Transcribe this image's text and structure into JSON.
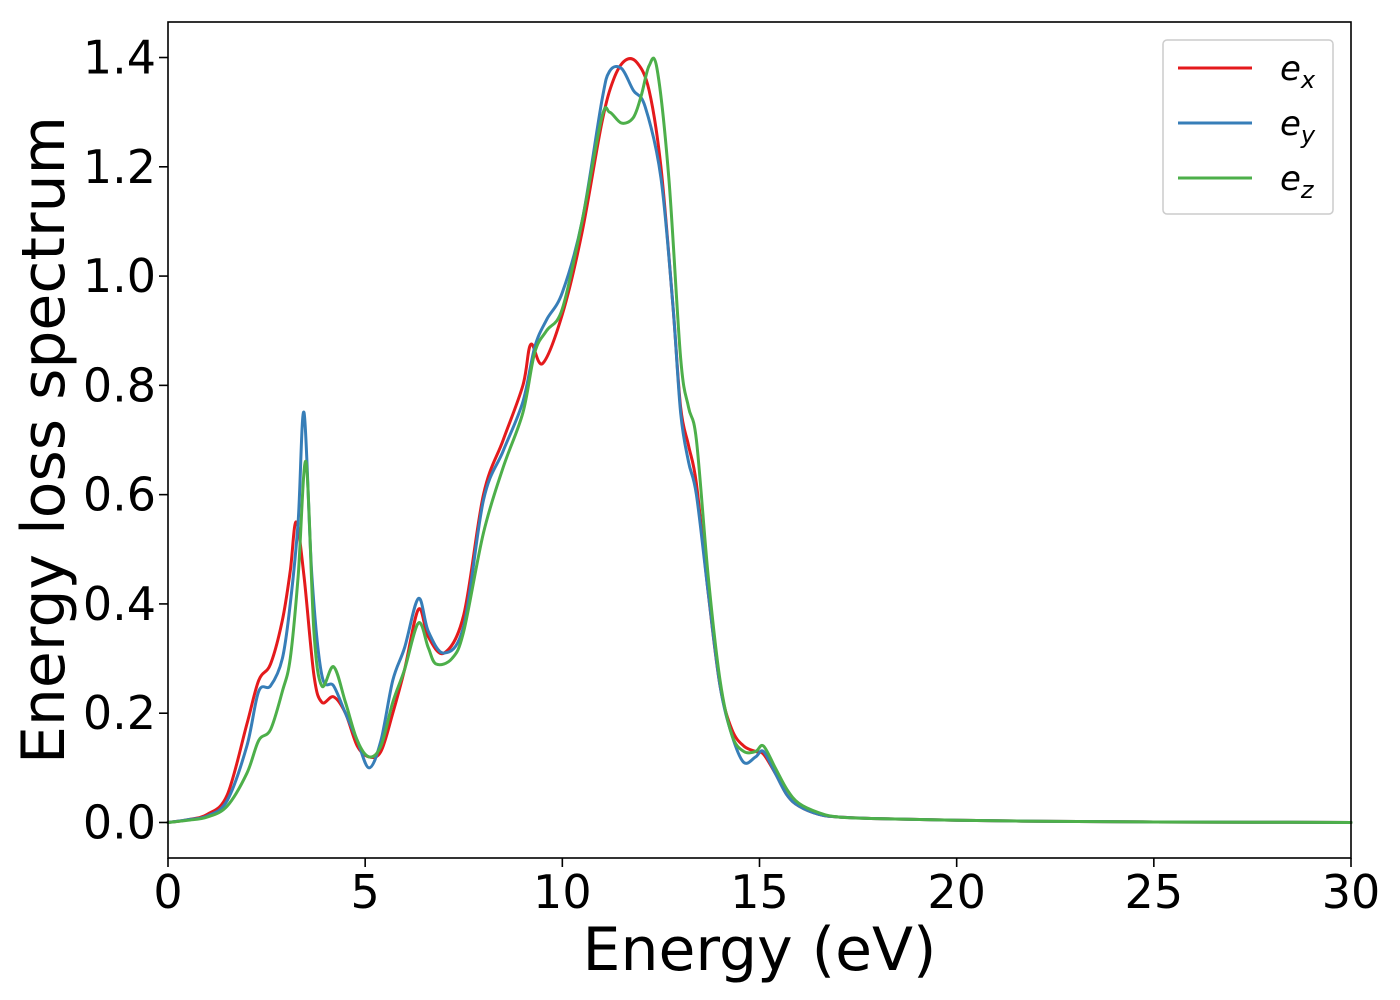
{
  "chart_data": {
    "type": "line",
    "title": "",
    "xlabel": "Energy (eV)",
    "ylabel": "Energy loss spectrum",
    "xlim": [
      0,
      30
    ],
    "ylim": [
      -0.065,
      1.465
    ],
    "xticks": [
      "0",
      "5",
      "10",
      "15",
      "20",
      "25",
      "30"
    ],
    "yticks": [
      "0.0",
      "0.2",
      "0.4",
      "0.6",
      "0.8",
      "1.0",
      "1.2",
      "1.4"
    ],
    "grid": false,
    "legend_position": "top-right",
    "series": [
      {
        "name": "e_x",
        "legend_base": "e",
        "legend_sub": "x",
        "color": "#e41a1c",
        "x": [
          0,
          0.5,
          1.0,
          1.5,
          2.0,
          2.3,
          2.6,
          2.9,
          3.1,
          3.25,
          3.45,
          3.7,
          3.9,
          4.2,
          4.5,
          4.8,
          5.1,
          5.4,
          5.7,
          6.0,
          6.35,
          6.6,
          7.0,
          7.5,
          8.0,
          8.5,
          9.0,
          9.2,
          9.5,
          10.0,
          10.5,
          11.0,
          11.3,
          11.6,
          11.9,
          12.2,
          12.5,
          12.8,
          13.0,
          13.2,
          13.4,
          13.7,
          14.0,
          14.3,
          14.6,
          14.9,
          15.1,
          15.4,
          15.7,
          16.0,
          16.5,
          17.0,
          18.0,
          20.0,
          22.5,
          25.0,
          27.5,
          30.0
        ],
        "y": [
          0.0,
          0.005,
          0.015,
          0.05,
          0.18,
          0.26,
          0.29,
          0.37,
          0.46,
          0.55,
          0.45,
          0.27,
          0.22,
          0.23,
          0.2,
          0.14,
          0.12,
          0.13,
          0.2,
          0.28,
          0.39,
          0.34,
          0.31,
          0.38,
          0.6,
          0.7,
          0.8,
          0.875,
          0.84,
          0.93,
          1.08,
          1.28,
          1.36,
          1.395,
          1.39,
          1.34,
          1.2,
          0.95,
          0.76,
          0.69,
          0.62,
          0.42,
          0.25,
          0.17,
          0.14,
          0.13,
          0.125,
          0.09,
          0.05,
          0.03,
          0.015,
          0.01,
          0.007,
          0.004,
          0.002,
          0.001,
          0.0005,
          0.0
        ]
      },
      {
        "name": "e_y",
        "legend_base": "e",
        "legend_sub": "y",
        "color": "#377eb8",
        "x": [
          0,
          0.5,
          1.0,
          1.5,
          2.0,
          2.3,
          2.6,
          2.9,
          3.1,
          3.3,
          3.45,
          3.65,
          3.9,
          4.2,
          4.5,
          4.8,
          5.1,
          5.4,
          5.7,
          6.0,
          6.35,
          6.6,
          7.0,
          7.5,
          8.0,
          8.5,
          9.0,
          9.3,
          9.6,
          10.0,
          10.5,
          11.0,
          11.2,
          11.5,
          11.8,
          12.1,
          12.5,
          12.8,
          13.0,
          13.2,
          13.4,
          13.7,
          14.0,
          14.3,
          14.6,
          14.9,
          15.1,
          15.4,
          15.7,
          16.0,
          16.5,
          17.0,
          18.0,
          20.0,
          22.5,
          25.0,
          27.5,
          30.0
        ],
        "y": [
          0.0,
          0.005,
          0.012,
          0.04,
          0.14,
          0.24,
          0.25,
          0.3,
          0.4,
          0.55,
          0.75,
          0.45,
          0.27,
          0.25,
          0.2,
          0.15,
          0.1,
          0.15,
          0.26,
          0.32,
          0.41,
          0.35,
          0.31,
          0.36,
          0.59,
          0.68,
          0.77,
          0.87,
          0.92,
          0.97,
          1.1,
          1.32,
          1.375,
          1.38,
          1.34,
          1.31,
          1.18,
          0.95,
          0.75,
          0.66,
          0.6,
          0.42,
          0.25,
          0.16,
          0.11,
          0.12,
          0.13,
          0.09,
          0.05,
          0.03,
          0.015,
          0.01,
          0.007,
          0.004,
          0.002,
          0.001,
          0.0005,
          0.0
        ]
      },
      {
        "name": "e_z",
        "legend_base": "e",
        "legend_sub": "z",
        "color": "#4daf4a",
        "x": [
          0,
          0.5,
          1.0,
          1.5,
          2.0,
          2.3,
          2.6,
          2.9,
          3.1,
          3.3,
          3.5,
          3.7,
          3.9,
          4.2,
          4.5,
          4.8,
          5.1,
          5.4,
          5.7,
          6.0,
          6.35,
          6.6,
          6.8,
          7.2,
          7.5,
          8.0,
          8.5,
          9.0,
          9.3,
          9.6,
          10.0,
          10.5,
          11.0,
          11.2,
          11.5,
          11.8,
          12.0,
          12.2,
          12.4,
          12.7,
          13.0,
          13.2,
          13.4,
          13.7,
          14.0,
          14.3,
          14.6,
          14.9,
          15.1,
          15.4,
          15.7,
          16.0,
          16.5,
          17.0,
          18.0,
          20.0,
          22.5,
          25.0,
          27.5,
          30.0
        ],
        "y": [
          0.0,
          0.004,
          0.01,
          0.03,
          0.09,
          0.15,
          0.17,
          0.24,
          0.3,
          0.45,
          0.66,
          0.35,
          0.25,
          0.285,
          0.22,
          0.15,
          0.12,
          0.14,
          0.22,
          0.28,
          0.365,
          0.32,
          0.29,
          0.3,
          0.35,
          0.53,
          0.65,
          0.75,
          0.86,
          0.9,
          0.94,
          1.1,
          1.29,
          1.3,
          1.28,
          1.29,
          1.33,
          1.385,
          1.38,
          1.18,
          0.85,
          0.76,
          0.7,
          0.45,
          0.26,
          0.16,
          0.13,
          0.13,
          0.14,
          0.1,
          0.06,
          0.035,
          0.018,
          0.01,
          0.007,
          0.004,
          0.002,
          0.001,
          0.0005,
          0.0
        ]
      }
    ]
  }
}
